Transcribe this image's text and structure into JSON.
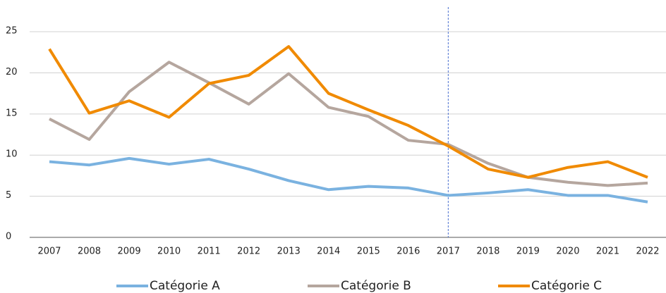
{
  "chart_data": {
    "type": "line",
    "categories": [
      "2007",
      "2008",
      "2009",
      "2010",
      "2011",
      "2012",
      "2013",
      "2014",
      "2015",
      "2016",
      "2017",
      "2018",
      "2019",
      "2020",
      "2021",
      "2022"
    ],
    "series": [
      {
        "name": "Catégorie A",
        "color": "#7ab2e0",
        "values": [
          9.2,
          8.8,
          9.6,
          8.9,
          9.5,
          8.3,
          6.9,
          5.8,
          6.2,
          6.0,
          5.1,
          5.4,
          5.8,
          5.1,
          5.1,
          4.3
        ]
      },
      {
        "name": "Catégorie B",
        "color": "#b5a69e",
        "values": [
          14.4,
          11.9,
          17.7,
          21.3,
          18.8,
          16.2,
          19.9,
          15.8,
          14.7,
          11.8,
          11.3,
          9.0,
          7.3,
          6.7,
          6.3,
          6.6
        ]
      },
      {
        "name": "Catégorie C",
        "color": "#f08a00",
        "values": [
          22.9,
          15.1,
          16.6,
          14.6,
          18.7,
          19.7,
          23.2,
          17.5,
          15.5,
          13.6,
          11.1,
          8.3,
          7.3,
          8.5,
          9.2,
          7.3
        ]
      }
    ],
    "ylim": [
      0,
      28
    ],
    "yticks": [
      0,
      5,
      10,
      15,
      20,
      25
    ],
    "grid": true,
    "legend": "bottom",
    "reference_line": {
      "x": "2017",
      "color": "#4a6fcf",
      "style": "dashed"
    }
  }
}
